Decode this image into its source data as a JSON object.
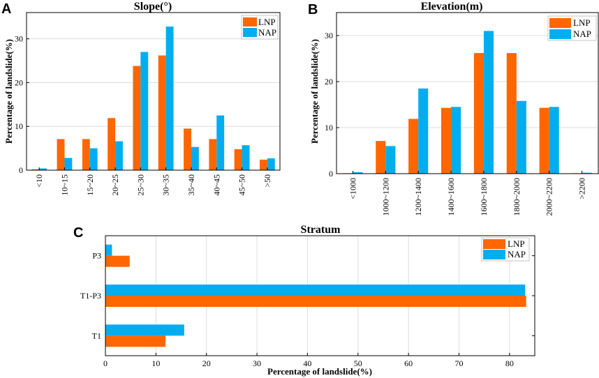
{
  "colors": {
    "lnp": "#FF6600",
    "nap": "#00AEEF",
    "grid": "#dcdcdc",
    "axis": "#000000"
  },
  "chart_data": [
    {
      "id": "A",
      "panel_letter": "A",
      "type": "bar",
      "title": "Slope(°)",
      "xlabel": "",
      "ylabel": "Percentage of landslide(%)",
      "categories": [
        "<10",
        "10~15",
        "15~20",
        "20~25",
        "25~30",
        "30~35",
        "35~40",
        "40~45",
        "45~50",
        ">50"
      ],
      "series": [
        {
          "name": "LNP",
          "values": [
            0.2,
            7.1,
            7.1,
            11.9,
            23.8,
            26.2,
            9.5,
            7.1,
            4.8,
            2.4
          ]
        },
        {
          "name": "NAP",
          "values": [
            0.4,
            2.8,
            5.0,
            6.6,
            27.0,
            32.8,
            5.3,
            12.5,
            5.7,
            2.7
          ]
        }
      ],
      "ylim": [
        0,
        36
      ],
      "yticks": [
        0,
        10,
        20,
        30
      ],
      "grid": true,
      "legend": "top-right"
    },
    {
      "id": "B",
      "panel_letter": "B",
      "type": "bar",
      "title": "Elevation(m)",
      "xlabel": "",
      "ylabel": "Percentage of landslide(%)",
      "categories": [
        "<1000",
        "1000~1200",
        "1200~1400",
        "1400~1600",
        "1600~1800",
        "1800~2000",
        "2000~2200",
        ">2200"
      ],
      "series": [
        {
          "name": "LNP",
          "values": [
            0.1,
            7.1,
            11.9,
            14.3,
            26.2,
            26.2,
            14.3,
            0.1
          ]
        },
        {
          "name": "NAP",
          "values": [
            0.3,
            6.0,
            18.5,
            14.5,
            31.0,
            15.8,
            14.5,
            0.2
          ]
        }
      ],
      "ylim": [
        0,
        35
      ],
      "yticks": [
        0,
        10,
        20,
        30
      ],
      "grid": true,
      "legend": "top-right"
    },
    {
      "id": "C",
      "panel_letter": "C",
      "type": "bar",
      "orientation": "horizontal",
      "title": "Stratum",
      "xlabel": "Percentage of landslide(%)",
      "ylabel": "",
      "categories": [
        "T1",
        "T1-P3",
        "P3"
      ],
      "series": [
        {
          "name": "LNP",
          "values": [
            11.9,
            83.3,
            4.8
          ]
        },
        {
          "name": "NAP",
          "values": [
            15.6,
            83.1,
            1.3
          ]
        }
      ],
      "xlim": [
        0,
        85
      ],
      "xticks": [
        0,
        10,
        20,
        30,
        40,
        50,
        60,
        70,
        80
      ],
      "grid": true,
      "legend": "top-right"
    }
  ]
}
